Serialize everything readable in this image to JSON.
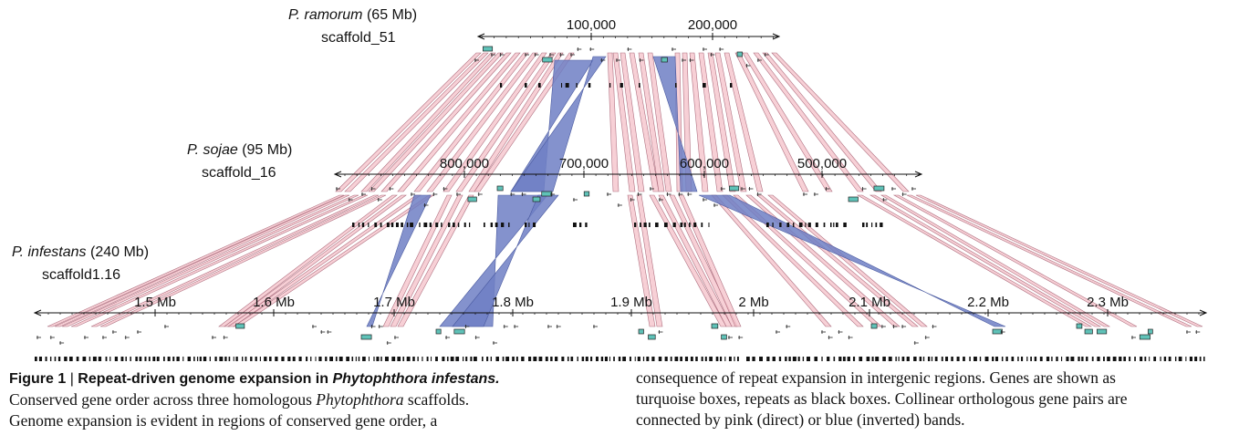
{
  "tracks": [
    {
      "id": "ramorum",
      "species": "P. ramorum",
      "genome_size": "(65 Mb)",
      "scaffold": "scaffold_51",
      "ticks": [
        "100,000",
        "200,000"
      ]
    },
    {
      "id": "sojae",
      "species": "P. sojae",
      "genome_size": "(95 Mb)",
      "scaffold": "scaffold_16",
      "ticks": [
        "800,000",
        "700,000",
        "600,000",
        "500,000"
      ]
    },
    {
      "id": "infestans",
      "species": "P. infestans",
      "genome_size": "(240 Mb)",
      "scaffold": "scaffold1.16",
      "ticks": [
        "1.5 Mb",
        "1.6 Mb",
        "1.7 Mb",
        "1.8 Mb",
        "1.9 Mb",
        "2 Mb",
        "2.1 Mb",
        "2.2 Mb",
        "2.3 Mb"
      ]
    }
  ],
  "colors": {
    "gene": "#5fc2b8",
    "repeat": "#111111",
    "direct_band": "#f4c0c8",
    "direct_band_edge": "#b07080",
    "inverted_band": "#6f7fc4",
    "inverted_band_edge": "#4a5aa0"
  },
  "caption": {
    "figure_label": "Figure 1",
    "separator": "|",
    "title": "Repeat-driven genome expansion in ",
    "title_italic": "Phytophthora infestans.",
    "left_lines": [
      [
        "Conserved gene order across three homologous ",
        "Phytophthora",
        " scaffolds."
      ],
      [
        "Genome expansion is evident in regions of conserved gene order, a",
        "",
        ""
      ]
    ],
    "right_lines": [
      "consequence of repeat expansion in intergenic regions. Genes are shown as",
      "turquoise boxes, repeats as black boxes. Collinear orthologous gene pairs are",
      "connected by pink (direct) or blue (inverted) bands."
    ]
  }
}
